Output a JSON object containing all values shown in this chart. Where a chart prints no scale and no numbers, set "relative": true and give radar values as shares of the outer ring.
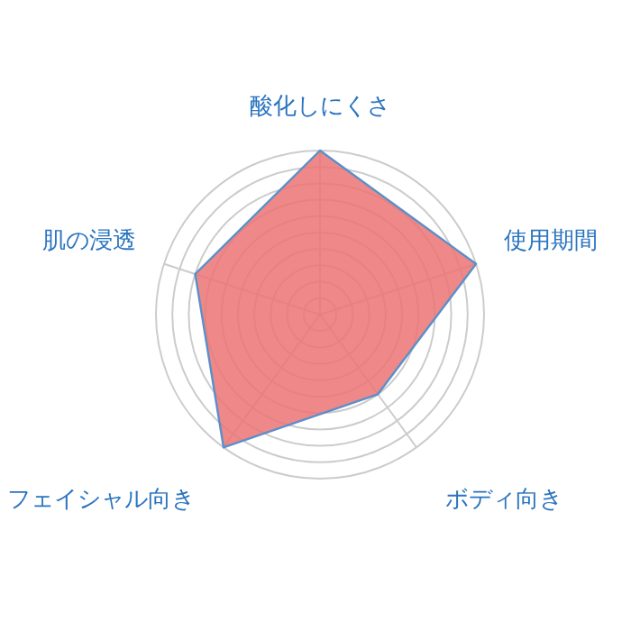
{
  "chart_data": {
    "type": "radar",
    "relative": true,
    "categories": [
      "酸化しにくさ",
      "使用期間",
      "ボディ向き",
      "フェイシャル向き",
      "肌の浸透"
    ],
    "series": [
      {
        "color": "#ec7373",
        "values": [
          1.0,
          1.0,
          0.6,
          1.0,
          0.8
        ]
      }
    ]
  }
}
